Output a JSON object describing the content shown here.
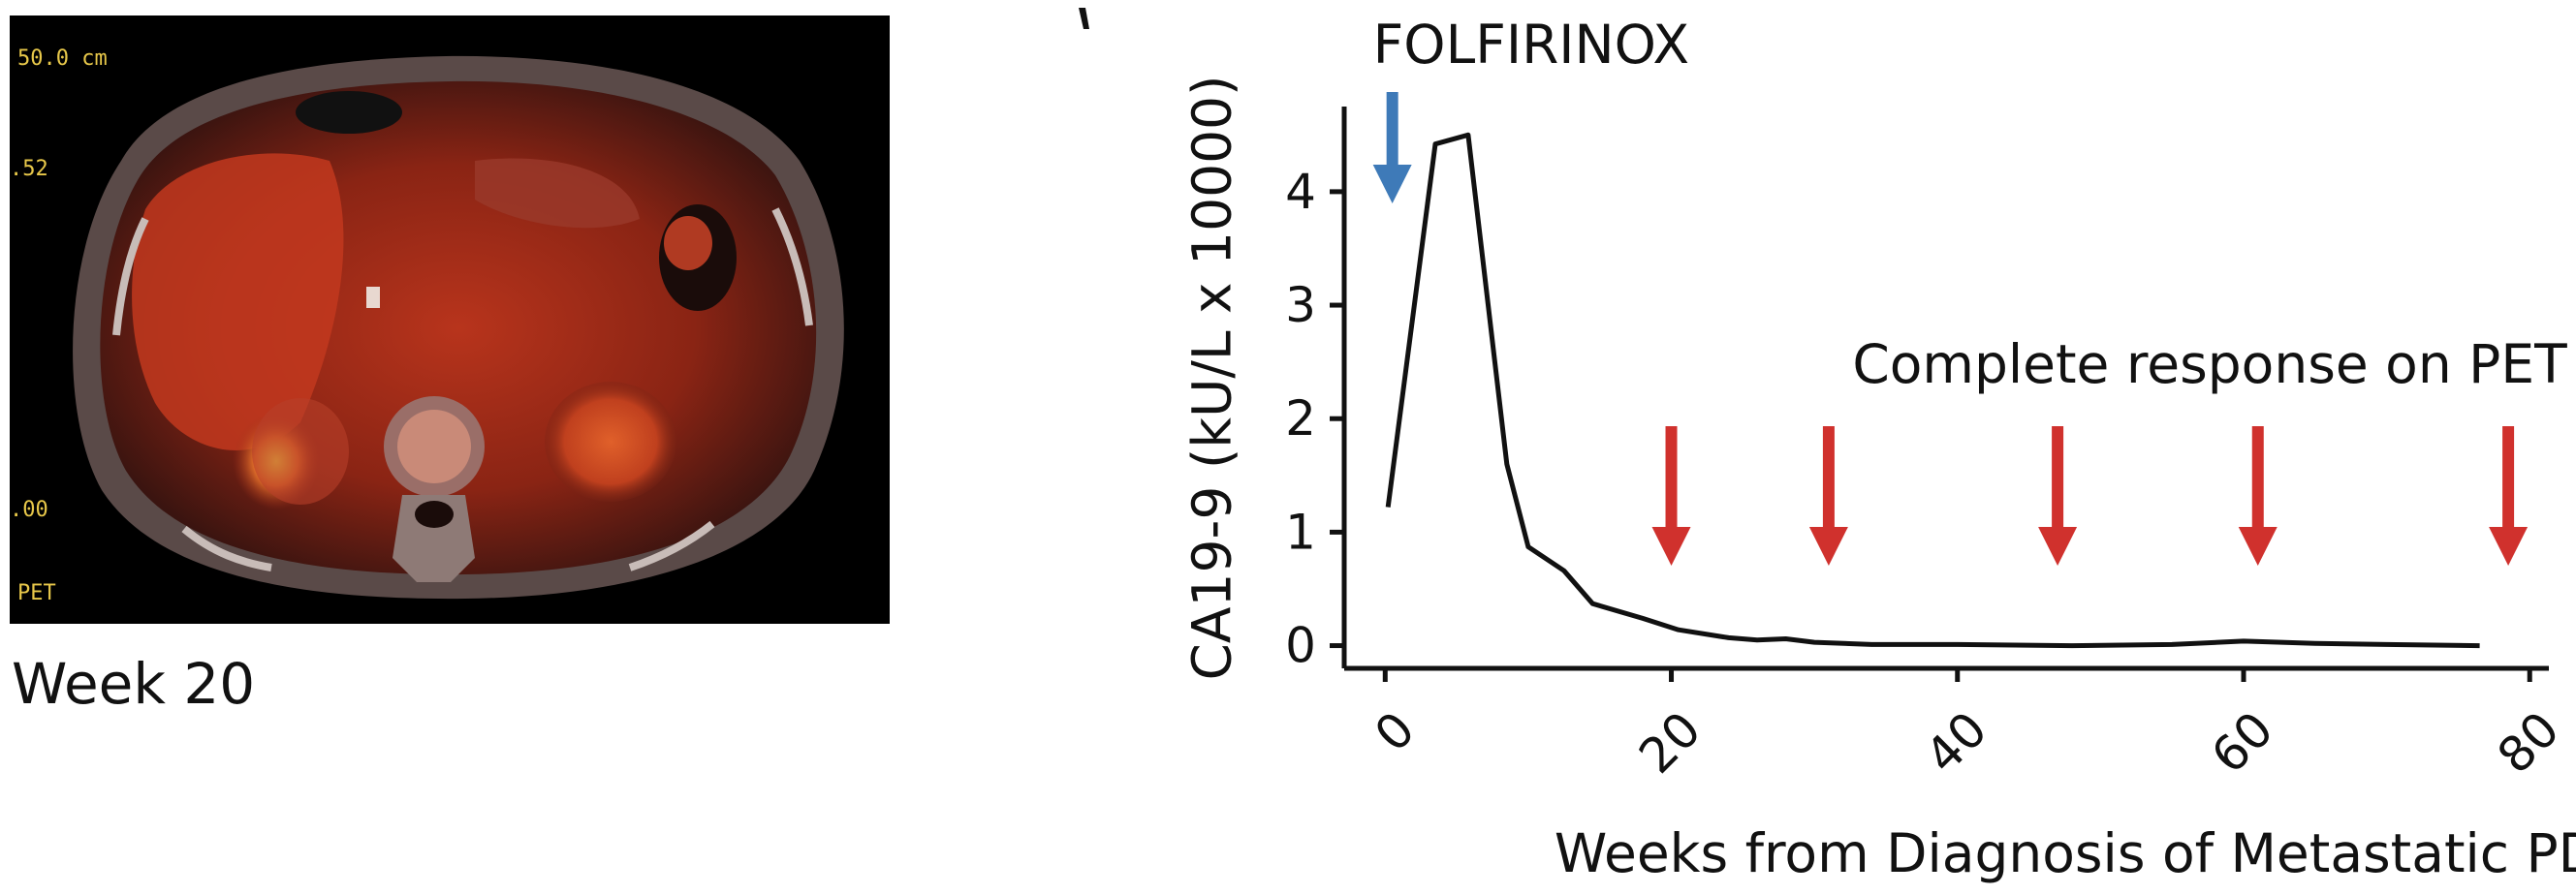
{
  "figure": {
    "panel_label": "Week 20",
    "scan_overlay": {
      "top_left": "50.0 cm",
      "upper_left": ".52",
      "lower_left": ".00",
      "bottom_left": "PET"
    }
  },
  "chart_data": {
    "type": "line",
    "title": "",
    "xlabel": "Weeks from Diagnosis of Metastatic PDAC",
    "ylabel": "CA19-9 (kU/L x 10000)",
    "xlim": [
      -3,
      81
    ],
    "ylim": [
      -0.2,
      4.75
    ],
    "xticks": [
      0,
      20,
      40,
      60,
      80
    ],
    "yticks": [
      0,
      1,
      2,
      3,
      4
    ],
    "grid": false,
    "series": [
      {
        "x": [
          0.2,
          3.5,
          5.8,
          8.5,
          10,
          12.5,
          14.5,
          18,
          20.5,
          24,
          26,
          28,
          30,
          34,
          40,
          48,
          55,
          60,
          65,
          70,
          76.5
        ],
        "values": [
          1.22,
          4.42,
          4.5,
          1.6,
          0.87,
          0.66,
          0.37,
          0.24,
          0.14,
          0.07,
          0.05,
          0.06,
          0.03,
          0.01,
          0.01,
          0.0,
          0.01,
          0.04,
          0.02,
          0.01,
          0.0
        ]
      }
    ],
    "annotations": {
      "treatment": {
        "label": "FOLFIRINOX",
        "week": 0.5,
        "arrow_color": "#3e7ab8"
      },
      "response": {
        "label": "Complete response on PET",
        "weeks": [
          20,
          31,
          47,
          61,
          78.5
        ],
        "arrow_color": "#d0312d"
      }
    },
    "line_color": "#111111"
  }
}
